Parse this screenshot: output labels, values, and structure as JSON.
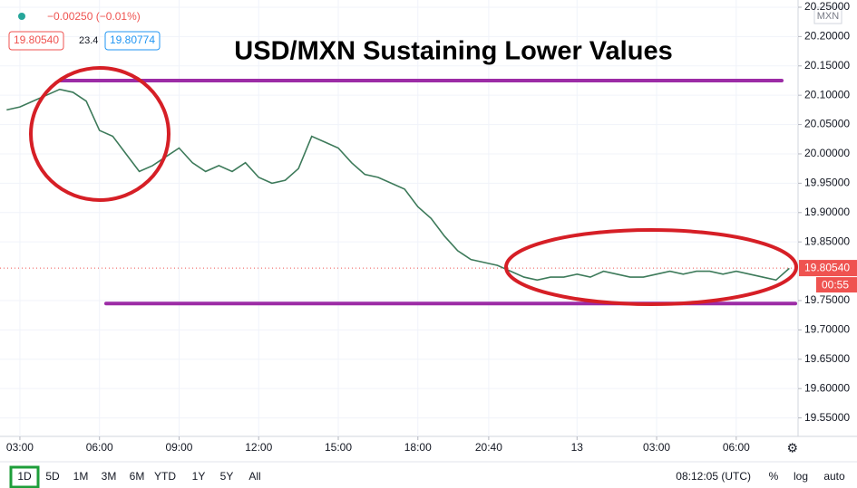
{
  "chart_data": {
    "type": "line",
    "title": "USD/MXN Sustaining Lower Values",
    "color": "#3d7a5a",
    "x": [
      2.5,
      3,
      3.5,
      4,
      4.5,
      5,
      5.5,
      6,
      6.5,
      7,
      7.5,
      8,
      8.5,
      9,
      9.5,
      10,
      10.5,
      11,
      11.5,
      12,
      12.5,
      13,
      13.5,
      14,
      14.5,
      15,
      15.5,
      16,
      16.5,
      17,
      17.5,
      18,
      18.5,
      19,
      19.5,
      20,
      20.5,
      21,
      21.5,
      22,
      22.5,
      23,
      23.5,
      24,
      24.5,
      25,
      25.5,
      26,
      26.5,
      27,
      27.5,
      28,
      28.5,
      29,
      29.5,
      30,
      30.5,
      31,
      31.5,
      32
    ],
    "values": [
      20.075,
      20.08,
      20.09,
      20.1,
      20.11,
      20.105,
      20.09,
      20.04,
      20.03,
      20.0,
      19.97,
      19.98,
      19.995,
      20.01,
      19.985,
      19.97,
      19.98,
      19.97,
      19.985,
      19.96,
      19.95,
      19.955,
      19.975,
      20.03,
      20.02,
      20.01,
      19.985,
      19.965,
      19.96,
      19.95,
      19.94,
      19.91,
      19.89,
      19.86,
      19.835,
      19.82,
      19.815,
      19.81,
      19.8,
      19.79,
      19.785,
      19.79,
      19.79,
      19.795,
      19.79,
      19.8,
      19.795,
      19.79,
      19.79,
      19.795,
      19.8,
      19.795,
      19.8,
      19.8,
      19.795,
      19.8,
      19.795,
      19.79,
      19.785,
      19.805
    ],
    "xlim": [
      2.25,
      32.33
    ],
    "xticks": [
      {
        "value": 3,
        "label": "03:00"
      },
      {
        "value": 6,
        "label": "06:00"
      },
      {
        "value": 9,
        "label": "09:00"
      },
      {
        "value": 12,
        "label": "12:00"
      },
      {
        "value": 15,
        "label": "15:00"
      },
      {
        "value": 18,
        "label": "18:00"
      },
      {
        "value": 20.67,
        "label": "20:40"
      },
      {
        "value": 24,
        "label": "13"
      },
      {
        "value": 27,
        "label": "03:00"
      },
      {
        "value": 30,
        "label": "06:00"
      }
    ],
    "ylim": [
      19.5185,
      20.2623
    ],
    "yticks": [
      {
        "value": 19.55,
        "label": "19.55000"
      },
      {
        "value": 19.6,
        "label": "19.60000"
      },
      {
        "value": 19.65,
        "label": "19.65000"
      },
      {
        "value": 19.7,
        "label": "19.70000"
      },
      {
        "value": 19.75,
        "label": "19.75000"
      },
      {
        "value": 19.85,
        "label": "19.85000"
      },
      {
        "value": 19.9,
        "label": "19.90000"
      },
      {
        "value": 19.95,
        "label": "19.95000"
      },
      {
        "value": 20.0,
        "label": "20.00000"
      },
      {
        "value": 20.05,
        "label": "20.05000"
      },
      {
        "value": 20.1,
        "label": "20.10000"
      },
      {
        "value": 20.15,
        "label": "20.15000"
      },
      {
        "value": 20.2,
        "label": "20.20000"
      },
      {
        "value": 20.25,
        "label": "20.25000"
      }
    ],
    "levels": [
      {
        "value": 20.125,
        "color": "#9c2ca6"
      },
      {
        "value": 19.745,
        "color": "#9c2ca6"
      }
    ],
    "last_price": {
      "value": 19.8054,
      "label": "19.80540"
    },
    "countdown": "00:55",
    "symbol": "MXN"
  },
  "header": {
    "change": "−0.00250 (−0.01%)",
    "bid": "19.80540",
    "spread": "23.4",
    "ask": "19.80774"
  },
  "toolbar": {
    "ranges": [
      "1D",
      "5D",
      "1M",
      "3M",
      "6M",
      "YTD",
      "1Y",
      "5Y",
      "All"
    ],
    "clock": "08:12:05 (UTC)",
    "toggles": [
      "%",
      "log",
      "auto"
    ]
  }
}
